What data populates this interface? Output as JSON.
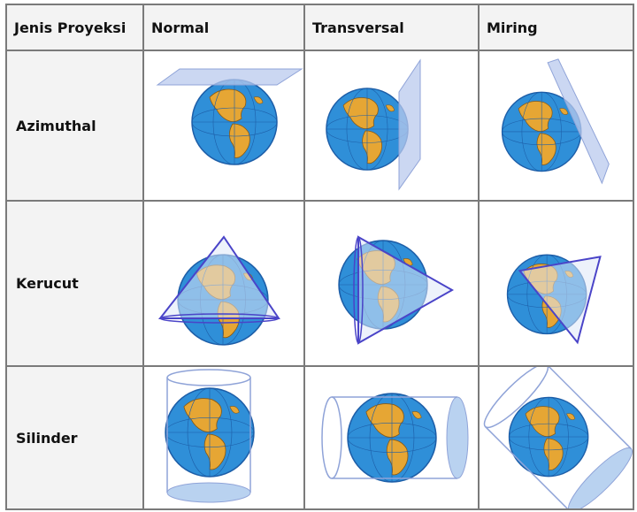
{
  "table": {
    "headers": [
      "Jenis Proyeksi",
      "Normal",
      "Transversal",
      "Miring"
    ],
    "rows": [
      {
        "label": "Azimuthal",
        "cells": [
          "azimuthal-normal",
          "azimuthal-transversal",
          "azimuthal-miring"
        ]
      },
      {
        "label": "Kerucut",
        "cells": [
          "kerucut-normal",
          "kerucut-transversal",
          "kerucut-miring"
        ]
      },
      {
        "label": "Silinder",
        "cells": [
          "silinder-normal",
          "silinder-transversal",
          "silinder-miring"
        ]
      }
    ]
  },
  "colors": {
    "ocean": "#2f8fd8",
    "land": "#e6a634",
    "plane": "#b9c9ee",
    "outline": "#4a44c8",
    "grid": "#7a7a7a",
    "header_bg": "#f3f3f3"
  }
}
